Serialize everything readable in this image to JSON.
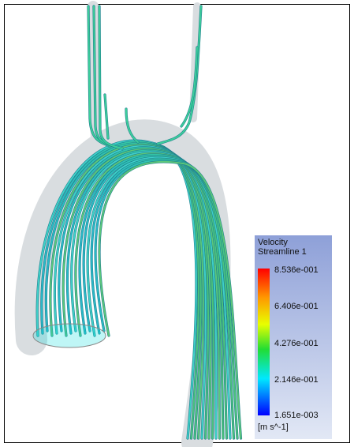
{
  "legend": {
    "title": "Velocity",
    "subtitle": "Streamline 1",
    "ticks": [
      "8.536e-001",
      "6.406e-001",
      "4.276e-001",
      "2.146e-001",
      "1.651e-003"
    ],
    "unit": "[m s^-1]"
  }
}
